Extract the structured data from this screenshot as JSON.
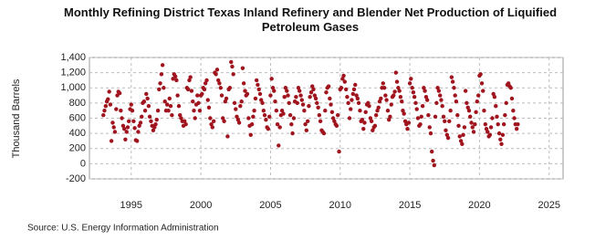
{
  "chart_data": {
    "type": "scatter",
    "title": "Monthly Refining District Texas Inland Refinery and Blender Net Production of Liquified Petroleum Gases",
    "y_label": "Thousand Barrels",
    "source": "Source: U.S. Energy Information Administration",
    "color": "#a0141e",
    "grid": true,
    "xlim": [
      1992,
      2026
    ],
    "xticks": [
      1995,
      2000,
      2005,
      2010,
      2015,
      2020,
      2025
    ],
    "ylim": [
      -200,
      1400
    ],
    "yticks": [
      -200,
      0,
      200,
      400,
      600,
      800,
      {
        "value": 1000,
        "label": "1,000"
      },
      {
        "value": 1200,
        "label": "1,200"
      },
      {
        "value": 1400,
        "label": "1,400"
      }
    ],
    "x": [
      1993.0,
      1993.08,
      1993.17,
      1993.25,
      1993.33,
      1993.42,
      1993.5,
      1993.58,
      1993.67,
      1993.75,
      1993.83,
      1993.92,
      1994.0,
      1994.08,
      1994.17,
      1994.25,
      1994.33,
      1994.42,
      1994.5,
      1994.58,
      1994.67,
      1994.75,
      1994.83,
      1994.92,
      1995.0,
      1995.08,
      1995.17,
      1995.25,
      1995.33,
      1995.42,
      1995.5,
      1995.58,
      1995.67,
      1995.75,
      1995.83,
      1995.92,
      1996.0,
      1996.08,
      1996.17,
      1996.25,
      1996.33,
      1996.42,
      1996.5,
      1996.58,
      1996.67,
      1996.75,
      1996.83,
      1996.92,
      1997.0,
      1997.08,
      1997.17,
      1997.25,
      1997.33,
      1997.42,
      1997.5,
      1997.58,
      1997.67,
      1997.75,
      1997.83,
      1997.92,
      1998.0,
      1998.08,
      1998.17,
      1998.25,
      1998.33,
      1998.42,
      1998.5,
      1998.58,
      1998.67,
      1998.75,
      1998.83,
      1998.92,
      1999.0,
      1999.08,
      1999.17,
      1999.25,
      1999.33,
      1999.42,
      1999.5,
      1999.58,
      1999.67,
      1999.75,
      1999.83,
      1999.92,
      2000.0,
      2000.08,
      2000.17,
      2000.25,
      2000.33,
      2000.42,
      2000.5,
      2000.58,
      2000.67,
      2000.75,
      2000.83,
      2000.92,
      2001.0,
      2001.08,
      2001.17,
      2001.25,
      2001.33,
      2001.42,
      2001.5,
      2001.58,
      2001.67,
      2001.75,
      2001.83,
      2001.92,
      2002.0,
      2002.08,
      2002.17,
      2002.25,
      2002.33,
      2002.42,
      2002.5,
      2002.58,
      2002.67,
      2002.75,
      2002.83,
      2002.92,
      2003.0,
      2003.08,
      2003.17,
      2003.25,
      2003.33,
      2003.42,
      2003.5,
      2003.58,
      2003.67,
      2003.75,
      2003.83,
      2003.92,
      2004.0,
      2004.08,
      2004.17,
      2004.25,
      2004.33,
      2004.42,
      2004.5,
      2004.58,
      2004.67,
      2004.75,
      2004.83,
      2004.92,
      2005.0,
      2005.08,
      2005.17,
      2005.25,
      2005.33,
      2005.42,
      2005.5,
      2005.58,
      2005.67,
      2005.75,
      2005.83,
      2005.92,
      2006.0,
      2006.08,
      2006.17,
      2006.25,
      2006.33,
      2006.42,
      2006.5,
      2006.58,
      2006.67,
      2006.75,
      2006.83,
      2006.92,
      2007.0,
      2007.08,
      2007.17,
      2007.25,
      2007.33,
      2007.42,
      2007.5,
      2007.58,
      2007.67,
      2007.75,
      2007.83,
      2007.92,
      2008.0,
      2008.08,
      2008.17,
      2008.25,
      2008.33,
      2008.42,
      2008.5,
      2008.58,
      2008.67,
      2008.75,
      2008.83,
      2008.92,
      2009.0,
      2009.08,
      2009.17,
      2009.25,
      2009.33,
      2009.42,
      2009.5,
      2009.58,
      2009.67,
      2009.75,
      2009.83,
      2009.92,
      2010.0,
      2010.08,
      2010.17,
      2010.25,
      2010.33,
      2010.42,
      2010.5,
      2010.58,
      2010.67,
      2010.75,
      2010.83,
      2010.92,
      2011.0,
      2011.08,
      2011.17,
      2011.25,
      2011.33,
      2011.42,
      2011.5,
      2011.58,
      2011.67,
      2011.75,
      2011.83,
      2011.92,
      2012.0,
      2012.08,
      2012.17,
      2012.25,
      2012.33,
      2012.42,
      2012.5,
      2012.58,
      2012.67,
      2012.75,
      2012.83,
      2012.92,
      2013.0,
      2013.08,
      2013.17,
      2013.25,
      2013.33,
      2013.42,
      2013.5,
      2013.58,
      2013.67,
      2013.75,
      2013.83,
      2013.92,
      2014.0,
      2014.08,
      2014.17,
      2014.25,
      2014.33,
      2014.42,
      2014.5,
      2014.58,
      2014.67,
      2014.75,
      2014.83,
      2014.92,
      2015.0,
      2015.08,
      2015.17,
      2015.25,
      2015.33,
      2015.42,
      2015.5,
      2015.58,
      2015.67,
      2015.75,
      2015.83,
      2015.92,
      2016.0,
      2016.08,
      2016.17,
      2016.25,
      2016.33,
      2016.42,
      2016.5,
      2016.58,
      2016.67,
      2016.75,
      2016.83,
      2016.92,
      2017.0,
      2017.08,
      2017.17,
      2017.25,
      2017.33,
      2017.42,
      2017.5,
      2017.58,
      2017.67,
      2017.75,
      2017.83,
      2017.92,
      2018.0,
      2018.08,
      2018.17,
      2018.25,
      2018.33,
      2018.42,
      2018.5,
      2018.58,
      2018.67,
      2018.75,
      2018.83,
      2018.92,
      2019.0,
      2019.08,
      2019.17,
      2019.25,
      2019.33,
      2019.42,
      2019.5,
      2019.58,
      2019.67,
      2019.75,
      2019.83,
      2019.92,
      2020.0,
      2020.08,
      2020.17,
      2020.25,
      2020.33,
      2020.42,
      2020.5,
      2020.58,
      2020.67,
      2020.75,
      2020.83,
      2020.92,
      2021.0,
      2021.08,
      2021.17,
      2021.25,
      2021.33,
      2021.42,
      2021.5,
      2021.58,
      2021.67,
      2021.75,
      2021.83,
      2021.92,
      2022.0,
      2022.08,
      2022.17,
      2022.25,
      2022.33,
      2022.42,
      2022.5,
      2022.58,
      2022.67,
      2022.75
    ],
    "values": [
      640,
      700,
      760,
      820,
      850,
      950,
      780,
      300,
      540,
      480,
      420,
      720,
      900,
      950,
      930,
      700,
      600,
      500,
      460,
      320,
      420,
      480,
      560,
      720,
      780,
      700,
      560,
      470,
      310,
      300,
      420,
      500,
      540,
      620,
      800,
      820,
      700,
      920,
      860,
      760,
      620,
      560,
      500,
      440,
      480,
      520,
      580,
      700,
      980,
      1060,
      1180,
      1300,
      1000,
      820,
      700,
      780,
      700,
      860,
      760,
      640,
      1120,
      1180,
      1150,
      1100,
      900,
      760,
      640,
      600,
      560,
      500,
      560,
      520,
      1000,
      980,
      1100,
      1140,
      960,
      820,
      700,
      600,
      780,
      900,
      800,
      700,
      900,
      920,
      1000,
      980,
      1060,
      1100,
      840,
      740,
      600,
      520,
      480,
      560,
      1200,
      1180,
      1240,
      1100,
      1060,
      1000,
      900,
      600,
      560,
      820,
      860,
      360,
      980,
      1000,
      1340,
      1280,
      1180,
      800,
      720,
      620,
      580,
      540,
      760,
      820,
      1260,
      1060,
      960,
      900,
      920,
      600,
      500,
      380,
      520,
      620,
      700,
      860,
      1100,
      1040,
      980,
      920,
      840,
      800,
      700,
      640,
      580,
      480,
      460,
      620,
      900,
      1120,
      1000,
      960,
      820,
      700,
      520,
      240,
      480,
      640,
      700,
      660,
      880,
      1000,
      960,
      900,
      800,
      640,
      520,
      400,
      600,
      820,
      880,
      800,
      1000,
      960,
      900,
      840,
      780,
      700,
      520,
      440,
      560,
      760,
      880,
      940,
      1020,
      980,
      900,
      860,
      800,
      740,
      640,
      560,
      440,
      420,
      400,
      700,
      940,
      1000,
      1020,
      860,
      780,
      680,
      600,
      560,
      520,
      500,
      640,
      160,
      980,
      1000,
      1120,
      1160,
      1080,
      980,
      880,
      800,
      600,
      720,
      840,
      920,
      980,
      1040,
      900,
      860,
      800,
      700,
      560,
      580,
      460,
      540,
      680,
      780,
      800,
      760,
      600,
      560,
      440,
      480,
      500,
      640,
      700,
      740,
      820,
      860,
      1000,
      1060,
      1000,
      900,
      840,
      700,
      580,
      620,
      780,
      880,
      900,
      950,
      1200,
      1080,
      1000,
      960,
      880,
      820,
      700,
      660,
      560,
      520,
      460,
      540,
      1060,
      1120,
      1000,
      940,
      880,
      800,
      720,
      600,
      500,
      520,
      620,
      760,
      1000,
      960,
      880,
      840,
      640,
      480,
      400,
      160,
      40,
      -20,
      620,
      800,
      1000,
      960,
      900,
      840,
      760,
      620,
      560,
      440,
      380,
      340,
      560,
      700,
      1140,
      1080,
      1000,
      900,
      820,
      640,
      500,
      360,
      300,
      260,
      380,
      480,
      960,
      800,
      740,
      700,
      620,
      540,
      480,
      420,
      520,
      680,
      820,
      900,
      1160,
      1180,
      1060,
      960,
      700,
      520,
      460,
      420,
      360,
      380,
      480,
      600,
      920,
      880,
      760,
      620,
      520,
      400,
      320,
      260,
      380,
      520,
      640,
      800,
      1040,
      1060,
      1020,
      1000,
      860,
      700,
      600,
      520,
      460,
      520
    ]
  }
}
